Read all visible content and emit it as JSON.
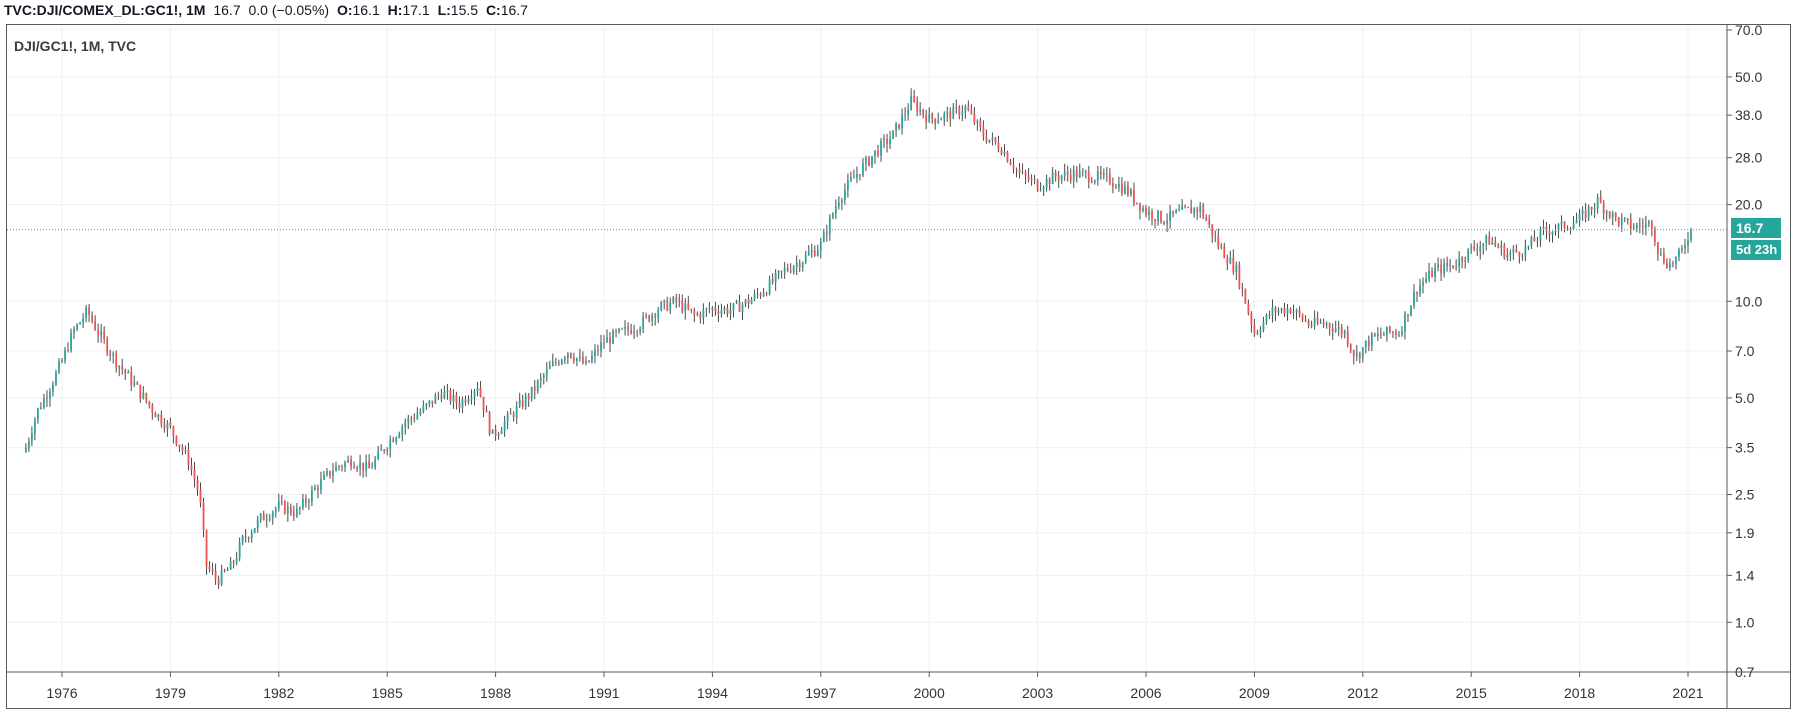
{
  "header": {
    "symbol": "TVC:DJI/COMEX_DL:GC1!, 1M",
    "last": "16.7",
    "change": "0.0 (−0.05%)",
    "o_label": "O:",
    "o_value": "16.1",
    "h_label": "H:",
    "h_value": "17.1",
    "l_label": "L:",
    "l_value": "15.5",
    "c_label": "C:",
    "c_value": "16.7"
  },
  "pane_title": "DJI/GC1!, 1M, TVC",
  "last_price_label": "16.7",
  "countdown_label": "5d 23h",
  "colors": {
    "up": "#26a69a",
    "down": "#ef5350",
    "wick": "#4a4a4a",
    "grid": "#eef0f3",
    "price_line": "#26a69a"
  },
  "chart_data": {
    "type": "candlestick",
    "title": "DJI/GC1!, 1M, TVC",
    "scale": "log",
    "ylim": [
      0.7,
      70.0
    ],
    "y_ticks": [
      "70.0",
      "50.0",
      "38.0",
      "28.0",
      "20.0",
      "10.0",
      "7.0",
      "5.0",
      "3.5",
      "2.5",
      "1.9",
      "1.4",
      "1.0",
      "0.7"
    ],
    "y_tick_values": [
      70,
      50,
      38,
      28,
      20,
      10,
      7,
      5,
      3.5,
      2.5,
      1.9,
      1.4,
      1.0,
      0.7
    ],
    "x_ticks": [
      "1976",
      "1979",
      "1982",
      "1985",
      "1988",
      "1991",
      "1994",
      "1997",
      "2000",
      "2003",
      "2006",
      "2009",
      "2012",
      "2015",
      "2018",
      "2021"
    ],
    "x_range": [
      1975.0,
      2021.05
    ],
    "last_value": 16.7,
    "series_path": [
      [
        1975.0,
        3.5
      ],
      [
        1975.3,
        4.5
      ],
      [
        1975.7,
        5.5
      ],
      [
        1976.0,
        6.5
      ],
      [
        1976.3,
        8.0
      ],
      [
        1976.7,
        9.3
      ],
      [
        1977.0,
        8.0
      ],
      [
        1977.5,
        6.5
      ],
      [
        1978.0,
        5.5
      ],
      [
        1978.5,
        4.6
      ],
      [
        1979.0,
        4.0
      ],
      [
        1979.5,
        3.2
      ],
      [
        1979.8,
        2.5
      ],
      [
        1980.0,
        1.5
      ],
      [
        1980.3,
        1.35
      ],
      [
        1980.7,
        1.5
      ],
      [
        1981.0,
        1.8
      ],
      [
        1981.5,
        2.1
      ],
      [
        1982.0,
        2.3
      ],
      [
        1982.5,
        2.2
      ],
      [
        1983.0,
        2.6
      ],
      [
        1983.5,
        3.0
      ],
      [
        1984.0,
        3.2
      ],
      [
        1984.5,
        3.0
      ],
      [
        1985.0,
        3.6
      ],
      [
        1985.5,
        4.2
      ],
      [
        1986.0,
        4.6
      ],
      [
        1986.5,
        5.2
      ],
      [
        1987.0,
        4.8
      ],
      [
        1987.5,
        5.5
      ],
      [
        1987.9,
        3.8
      ],
      [
        1988.5,
        4.5
      ],
      [
        1989.0,
        5.2
      ],
      [
        1989.5,
        6.2
      ],
      [
        1990.0,
        7.0
      ],
      [
        1990.5,
        6.3
      ],
      [
        1991.0,
        7.5
      ],
      [
        1991.5,
        8.0
      ],
      [
        1992.0,
        8.5
      ],
      [
        1992.5,
        9.5
      ],
      [
        1993.0,
        10.0
      ],
      [
        1993.5,
        9.0
      ],
      [
        1994.0,
        9.5
      ],
      [
        1994.5,
        9.4
      ],
      [
        1995.0,
        10.0
      ],
      [
        1995.5,
        11.0
      ],
      [
        1996.0,
        12.5
      ],
      [
        1996.5,
        13.5
      ],
      [
        1997.0,
        15.0
      ],
      [
        1997.5,
        21.0
      ],
      [
        1998.0,
        25.0
      ],
      [
        1998.5,
        29.0
      ],
      [
        1999.0,
        33.0
      ],
      [
        1999.5,
        42.0
      ],
      [
        2000.0,
        37.0
      ],
      [
        2000.5,
        38.0
      ],
      [
        2001.0,
        40.0
      ],
      [
        2001.5,
        33.0
      ],
      [
        2002.0,
        30.0
      ],
      [
        2002.5,
        25.0
      ],
      [
        2003.0,
        23.0
      ],
      [
        2003.5,
        24.5
      ],
      [
        2004.0,
        25.0
      ],
      [
        2004.5,
        24.5
      ],
      [
        2005.0,
        24.0
      ],
      [
        2005.5,
        22.0
      ],
      [
        2006.0,
        19.0
      ],
      [
        2006.5,
        18.0
      ],
      [
        2007.0,
        19.0
      ],
      [
        2007.5,
        19.5
      ],
      [
        2008.0,
        15.0
      ],
      [
        2008.5,
        12.5
      ],
      [
        2009.0,
        8.0
      ],
      [
        2009.5,
        9.3
      ],
      [
        2010.0,
        9.5
      ],
      [
        2010.5,
        8.5
      ],
      [
        2011.0,
        8.5
      ],
      [
        2011.5,
        8.0
      ],
      [
        2011.8,
        6.7
      ],
      [
        2012.2,
        7.6
      ],
      [
        2012.7,
        8.0
      ],
      [
        2013.0,
        8.0
      ],
      [
        2013.5,
        11.0
      ],
      [
        2014.0,
        12.5
      ],
      [
        2014.5,
        13.0
      ],
      [
        2015.0,
        14.5
      ],
      [
        2015.5,
        15.5
      ],
      [
        2016.0,
        14.0
      ],
      [
        2016.5,
        14.5
      ],
      [
        2017.0,
        16.5
      ],
      [
        2017.5,
        17.0
      ],
      [
        2018.0,
        18.0
      ],
      [
        2018.5,
        20.5
      ],
      [
        2019.0,
        18.0
      ],
      [
        2019.5,
        17.0
      ],
      [
        2020.0,
        17.5
      ],
      [
        2020.2,
        14.0
      ],
      [
        2020.5,
        13.0
      ],
      [
        2020.8,
        14.0
      ],
      [
        2021.05,
        16.7
      ]
    ]
  }
}
